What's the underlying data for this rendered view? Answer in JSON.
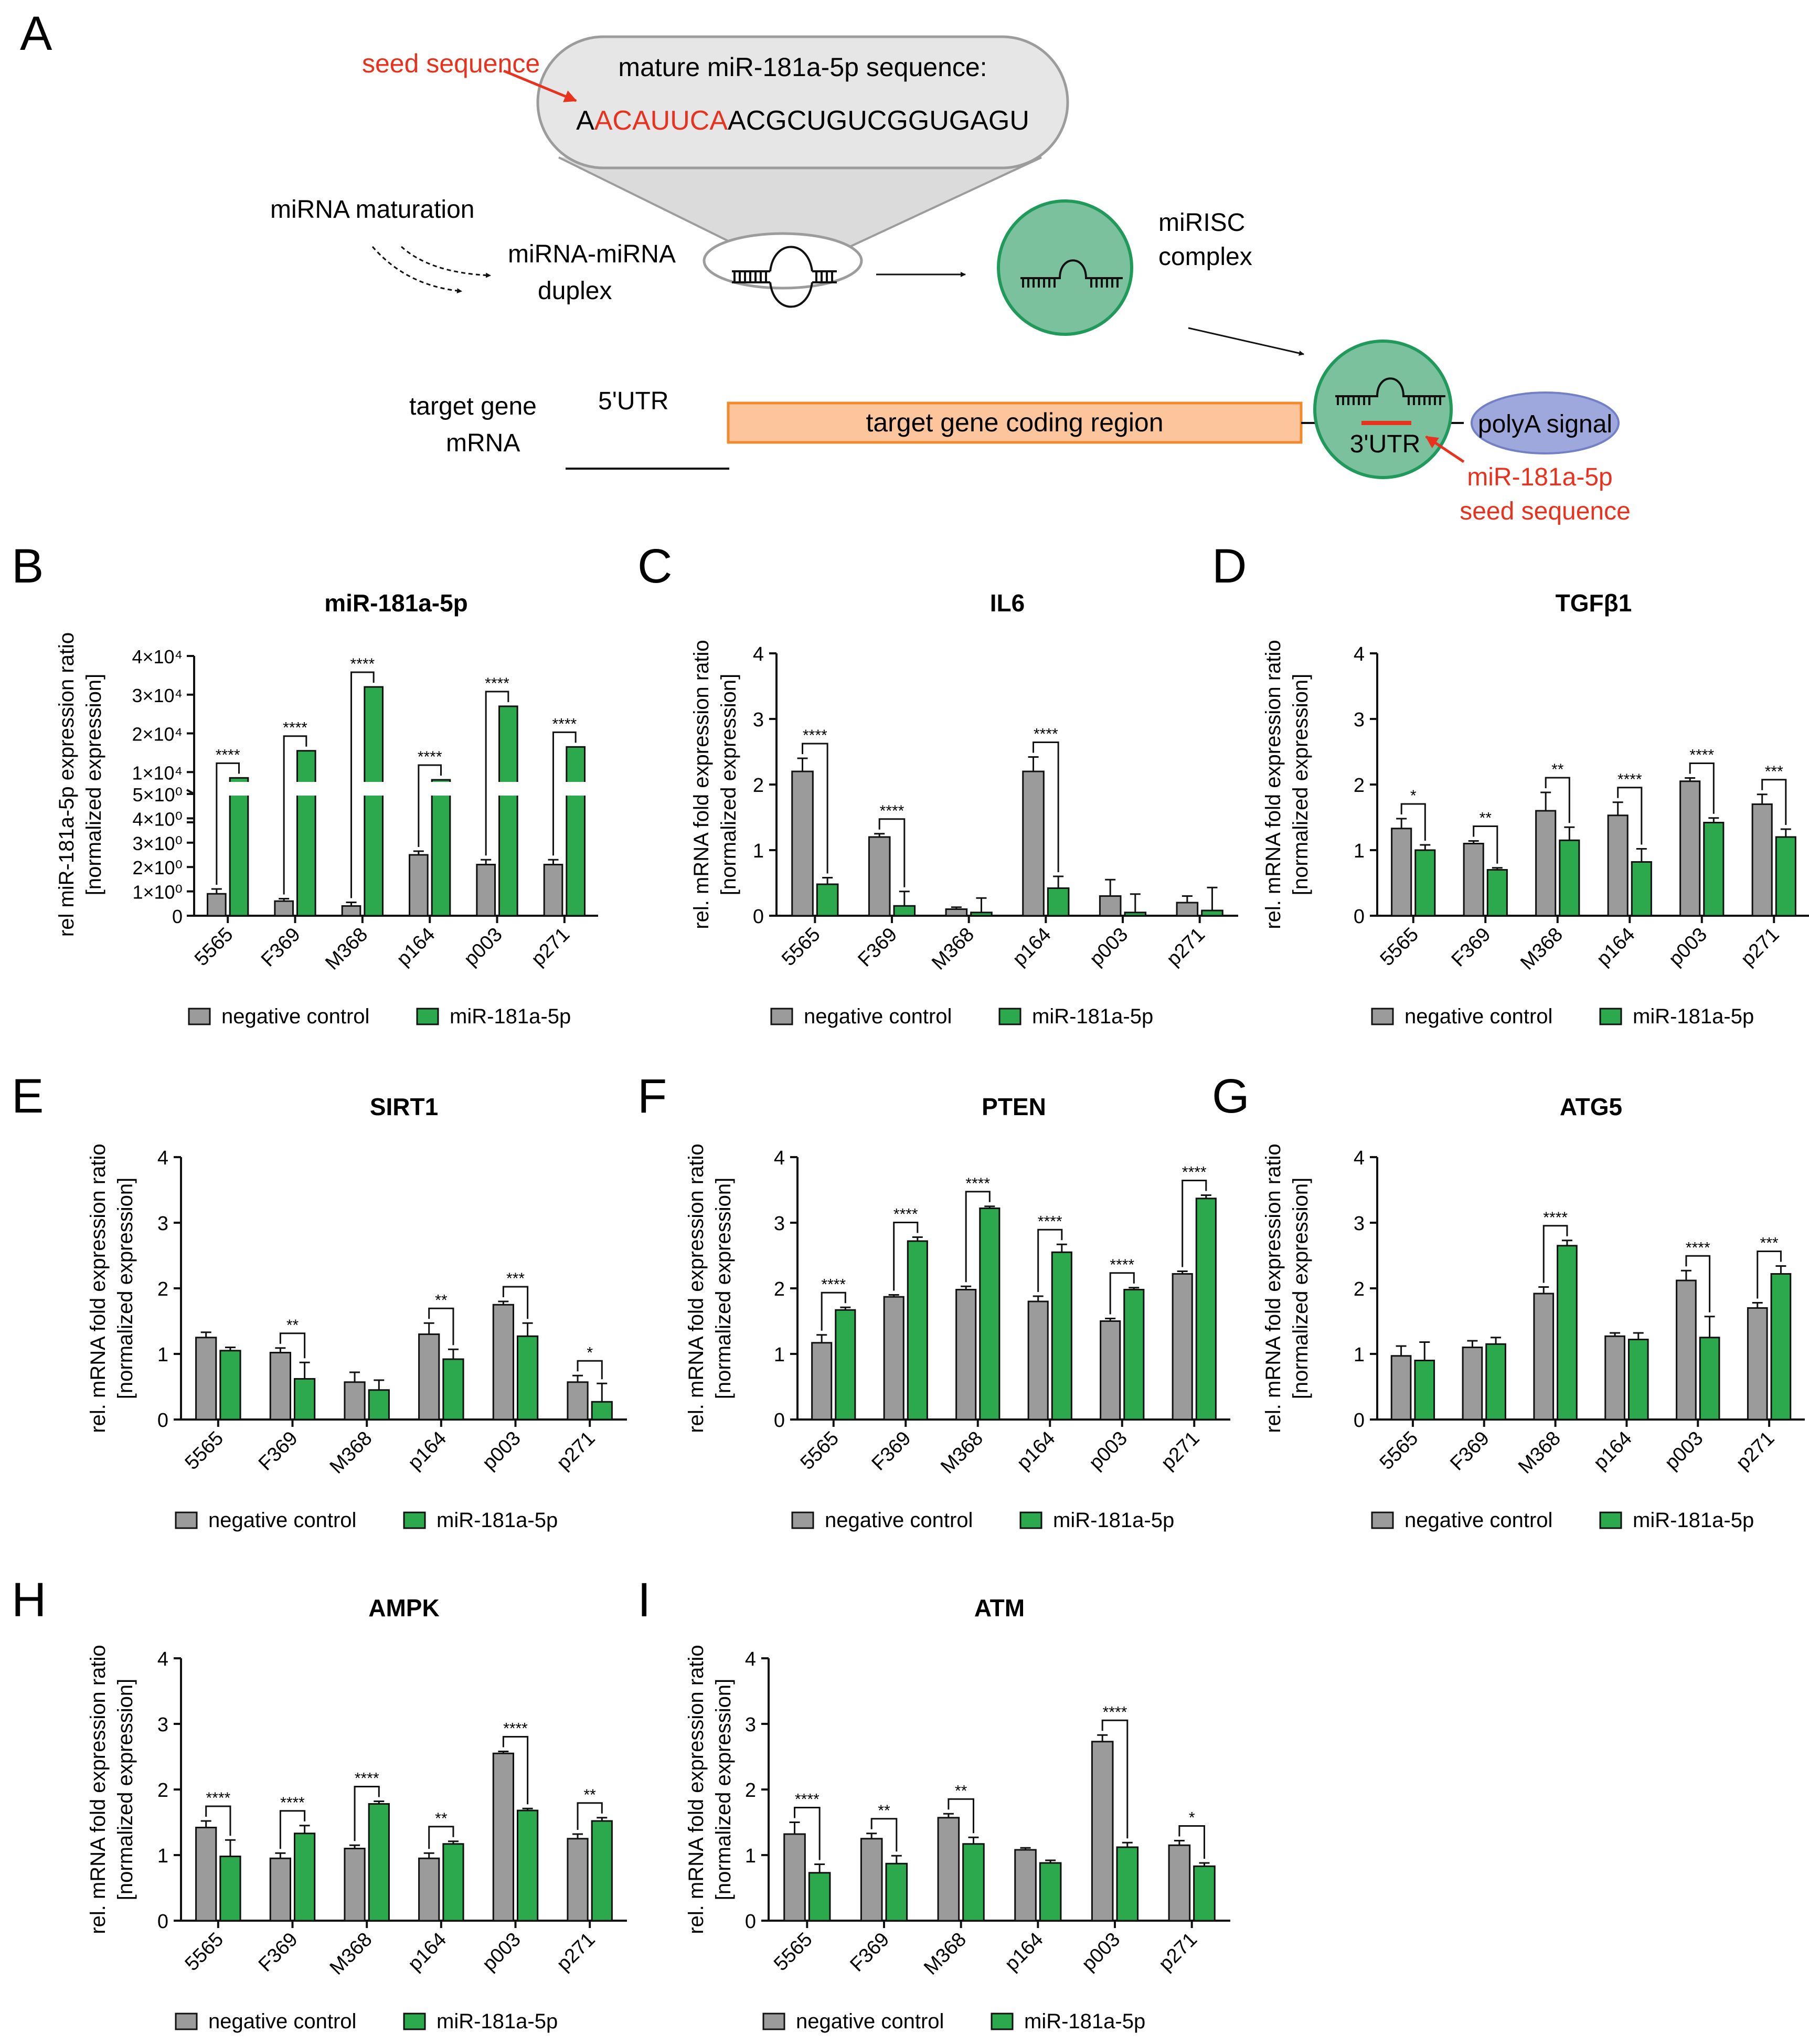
{
  "panel_a": {
    "label": "A",
    "seed_label": "seed sequence",
    "mature_title": "mature miR-181a-5p sequence:",
    "seq_prefix": "A",
    "seq_seed": "ACAUUCA",
    "seq_rest": "ACGCUGUCGGUGAGU",
    "maturation": "miRNA maturation",
    "duplex_line1": "miRNA-miRNA",
    "duplex_line2": "duplex",
    "mirisc_line1": "miRISC",
    "mirisc_line2": "complex",
    "target_line1": "target gene",
    "target_line2": "mRNA",
    "utr5": "5'UTR",
    "coding": "target gene coding region",
    "utr3": "3'UTR",
    "polya": "polyA signal",
    "seed2_line1": "miR-181a-5p",
    "seed2_line2": "seed sequence",
    "colors": {
      "red": "#e8321e",
      "green": "#7cc19e",
      "green_edge": "#1f9a5b",
      "orange": "#fcc59c",
      "orange_edge": "#f08a2c",
      "blue": "#9ea8dc",
      "gray": "#e6e6e6"
    }
  },
  "legend": {
    "control": "negative control",
    "treated": "miR-181a-5p"
  },
  "colors": {
    "control": "#9b9b9b",
    "treated": "#2ca84d"
  },
  "chart_data": [
    {
      "id": "B",
      "label": "B",
      "type": "bar",
      "title": "miR-181a-5p",
      "ylabel": [
        "rel miR-181a-5p expression ratio",
        "[normalized expression]"
      ],
      "categories": [
        "5565",
        "F369",
        "M368",
        "p164",
        "p003",
        "p271"
      ],
      "lower_ticks": [
        "0",
        "1×10⁰",
        "2×10⁰",
        "3×10⁰",
        "4×10⁰",
        "5×10⁰"
      ],
      "upper_ticks": [
        "1×10⁴",
        "2×10⁴",
        "3×10⁴",
        "4×10⁴"
      ],
      "lower_range": [
        0,
        5
      ],
      "upper_range": [
        0,
        40000
      ],
      "series": [
        {
          "name": "negative control",
          "values": [
            0.9,
            0.6,
            0.4,
            2.5,
            2.1,
            2.1
          ],
          "errors": [
            0.2,
            0.1,
            0.15,
            0.15,
            0.2,
            0.2
          ]
        },
        {
          "name": "miR-181a-5p",
          "values": [
            8500,
            15500,
            32000,
            8000,
            27000,
            16500
          ],
          "errors": [
            0,
            0,
            0,
            0,
            0,
            0
          ]
        }
      ],
      "significance": [
        "****",
        "****",
        "****",
        "****",
        "****",
        "****"
      ]
    },
    {
      "id": "C",
      "label": "C",
      "type": "bar",
      "title": "IL6",
      "ylabel": [
        "rel. mRNA fold expression ratio",
        "[normalized expression]"
      ],
      "categories": [
        "5565",
        "F369",
        "M368",
        "p164",
        "p003",
        "p271"
      ],
      "ylim": [
        0,
        4
      ],
      "yticks": [
        "0",
        "1",
        "2",
        "3",
        "4"
      ],
      "series": [
        {
          "name": "negative control",
          "values": [
            2.2,
            1.2,
            0.1,
            2.2,
            0.3,
            0.2
          ],
          "errors": [
            0.2,
            0.05,
            0.03,
            0.22,
            0.25,
            0.1
          ]
        },
        {
          "name": "miR-181a-5p",
          "values": [
            0.48,
            0.15,
            0.05,
            0.42,
            0.05,
            0.08
          ],
          "errors": [
            0.1,
            0.22,
            0.22,
            0.18,
            0.28,
            0.35
          ]
        }
      ],
      "significance": [
        "****",
        "****",
        "",
        "****",
        "",
        ""
      ]
    },
    {
      "id": "D",
      "label": "D",
      "type": "bar",
      "title": "TGFβ1",
      "ylabel": [
        "rel. mRNA fold expression ratio",
        "[normalized expression]"
      ],
      "categories": [
        "5565",
        "F369",
        "M368",
        "p164",
        "p003",
        "p271"
      ],
      "ylim": [
        0,
        4
      ],
      "yticks": [
        "0",
        "1",
        "2",
        "3",
        "4"
      ],
      "series": [
        {
          "name": "negative control",
          "values": [
            1.33,
            1.1,
            1.6,
            1.53,
            2.05,
            1.7
          ],
          "errors": [
            0.15,
            0.04,
            0.28,
            0.2,
            0.05,
            0.15
          ]
        },
        {
          "name": "miR-181a-5p",
          "values": [
            1.0,
            0.7,
            1.15,
            0.82,
            1.42,
            1.2
          ],
          "errors": [
            0.08,
            0.03,
            0.2,
            0.2,
            0.07,
            0.12
          ]
        }
      ],
      "significance": [
        "*",
        "**",
        "**",
        "****",
        "****",
        "***"
      ]
    },
    {
      "id": "E",
      "label": "E",
      "type": "bar",
      "title": "SIRT1",
      "ylabel": [
        "rel. mRNA fold expression ratio",
        "[normalized expression]"
      ],
      "categories": [
        "5565",
        "F369",
        "M368",
        "p164",
        "p003",
        "p271"
      ],
      "ylim": [
        0,
        4
      ],
      "yticks": [
        "0",
        "1",
        "2",
        "3",
        "4"
      ],
      "series": [
        {
          "name": "negative control",
          "values": [
            1.25,
            1.02,
            0.57,
            1.3,
            1.75,
            0.57
          ],
          "errors": [
            0.08,
            0.07,
            0.15,
            0.17,
            0.05,
            0.1
          ]
        },
        {
          "name": "miR-181a-5p",
          "values": [
            1.05,
            0.62,
            0.45,
            0.92,
            1.27,
            0.27
          ],
          "errors": [
            0.05,
            0.25,
            0.15,
            0.15,
            0.2,
            0.28
          ]
        }
      ],
      "significance": [
        "",
        "**",
        "",
        "**",
        "***",
        "*"
      ]
    },
    {
      "id": "F",
      "label": "F",
      "type": "bar",
      "title": "PTEN",
      "ylabel": [
        "rel. mRNA fold expression ratio",
        "[normalized expression]"
      ],
      "categories": [
        "5565",
        "F369",
        "M368",
        "p164",
        "p003",
        "p271"
      ],
      "ylim": [
        0,
        4
      ],
      "yticks": [
        "0",
        "1",
        "2",
        "3",
        "4"
      ],
      "series": [
        {
          "name": "negative control",
          "values": [
            1.17,
            1.87,
            1.98,
            1.8,
            1.5,
            2.22
          ],
          "errors": [
            0.12,
            0.03,
            0.05,
            0.08,
            0.04,
            0.04
          ]
        },
        {
          "name": "miR-181a-5p",
          "values": [
            1.67,
            2.72,
            3.22,
            2.55,
            1.98,
            3.37
          ],
          "errors": [
            0.04,
            0.06,
            0.03,
            0.12,
            0.03,
            0.05
          ]
        }
      ],
      "significance": [
        "****",
        "****",
        "****",
        "****",
        "****",
        "****"
      ]
    },
    {
      "id": "G",
      "label": "G",
      "type": "bar",
      "title": "ATG5",
      "ylabel": [
        "rel. mRNA fold expression ratio",
        "[normalized expression]"
      ],
      "categories": [
        "5565",
        "F369",
        "M368",
        "p164",
        "p003",
        "p271"
      ],
      "ylim": [
        0,
        4
      ],
      "yticks": [
        "0",
        "1",
        "2",
        "3",
        "4"
      ],
      "series": [
        {
          "name": "negative control",
          "values": [
            0.97,
            1.1,
            1.92,
            1.27,
            2.12,
            1.7
          ],
          "errors": [
            0.15,
            0.1,
            0.1,
            0.05,
            0.15,
            0.08
          ]
        },
        {
          "name": "miR-181a-5p",
          "values": [
            0.9,
            1.15,
            2.65,
            1.22,
            1.25,
            2.22
          ],
          "errors": [
            0.28,
            0.1,
            0.08,
            0.1,
            0.32,
            0.12
          ]
        }
      ],
      "significance": [
        "",
        "",
        "****",
        "",
        "****",
        "***"
      ]
    },
    {
      "id": "H",
      "label": "H",
      "type": "bar",
      "title": "AMPK",
      "ylabel": [
        "rel. mRNA fold expression ratio",
        "[normalized expression]"
      ],
      "categories": [
        "5565",
        "F369",
        "M368",
        "p164",
        "p003",
        "p271"
      ],
      "ylim": [
        0,
        4
      ],
      "yticks": [
        "0",
        "1",
        "2",
        "3",
        "4"
      ],
      "series": [
        {
          "name": "negative control",
          "values": [
            1.42,
            0.95,
            1.1,
            0.95,
            2.55,
            1.25
          ],
          "errors": [
            0.1,
            0.08,
            0.05,
            0.08,
            0.03,
            0.07
          ]
        },
        {
          "name": "miR-181a-5p",
          "values": [
            0.98,
            1.33,
            1.78,
            1.17,
            1.68,
            1.52
          ],
          "errors": [
            0.25,
            0.12,
            0.04,
            0.04,
            0.03,
            0.05
          ]
        }
      ],
      "significance": [
        "****",
        "****",
        "****",
        "**",
        "****",
        "**"
      ]
    },
    {
      "id": "I",
      "label": "I",
      "type": "bar",
      "title": "ATM",
      "ylabel": [
        "rel. mRNA fold expression ratio",
        "[normalized expression]"
      ],
      "categories": [
        "5565",
        "F369",
        "M368",
        "p164",
        "p003",
        "p271"
      ],
      "ylim": [
        0,
        4
      ],
      "yticks": [
        "0",
        "1",
        "2",
        "3",
        "4"
      ],
      "series": [
        {
          "name": "negative control",
          "values": [
            1.32,
            1.25,
            1.57,
            1.08,
            2.73,
            1.15
          ],
          "errors": [
            0.18,
            0.08,
            0.06,
            0.03,
            0.1,
            0.07
          ]
        },
        {
          "name": "miR-181a-5p",
          "values": [
            0.73,
            0.87,
            1.17,
            0.88,
            1.12,
            0.83
          ],
          "errors": [
            0.13,
            0.12,
            0.1,
            0.04,
            0.07,
            0.05
          ]
        }
      ],
      "significance": [
        "****",
        "**",
        "**",
        "",
        "****",
        "*"
      ]
    }
  ]
}
